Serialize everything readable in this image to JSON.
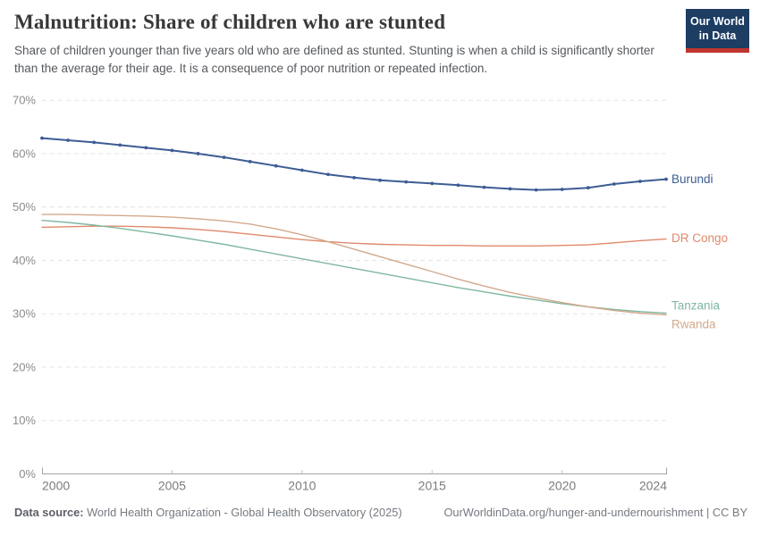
{
  "header": {
    "title": "Malnutrition: Share of children who are stunted",
    "subtitle": "Share of children younger than five years old who are defined as stunted. Stunting is when a child is significantly shorter than the average for their age. It is a consequence of poor nutrition or repeated infection."
  },
  "logo": {
    "line1": "Our World",
    "line2": "in Data",
    "bg_color": "#1d3d63",
    "bar_color": "#bf352e"
  },
  "chart_data": {
    "type": "line",
    "title": "Malnutrition: Share of children who are stunted",
    "xlabel": "",
    "ylabel": "",
    "ylim": [
      0,
      70
    ],
    "yticks": [
      0,
      10,
      20,
      30,
      40,
      50,
      60,
      70
    ],
    "ytick_suffix": "%",
    "xticks": [
      2000,
      2005,
      2010,
      2015,
      2020,
      2024
    ],
    "grid": "dashed-horizontal",
    "legend_position": "right-of-line-end",
    "x": [
      2000,
      2001,
      2002,
      2003,
      2004,
      2005,
      2006,
      2007,
      2008,
      2009,
      2010,
      2011,
      2012,
      2013,
      2014,
      2015,
      2016,
      2017,
      2018,
      2019,
      2020,
      2021,
      2022,
      2023,
      2024
    ],
    "series": [
      {
        "name": "Burundi",
        "color": "#3d5c94",
        "markers": true,
        "values": [
          62.9,
          62.5,
          62.1,
          61.6,
          61.1,
          60.6,
          60.0,
          59.3,
          58.5,
          57.7,
          56.9,
          56.1,
          55.5,
          55.0,
          54.7,
          54.4,
          54.1,
          53.7,
          53.4,
          53.2,
          53.3,
          53.6,
          54.3,
          54.8,
          55.2
        ]
      },
      {
        "name": "DR Congo",
        "color": "#e0896c",
        "markers": false,
        "values": [
          46.2,
          46.3,
          46.4,
          46.4,
          46.3,
          46.1,
          45.8,
          45.4,
          44.9,
          44.4,
          43.9,
          43.5,
          43.2,
          43.0,
          42.9,
          42.8,
          42.8,
          42.7,
          42.7,
          42.7,
          42.8,
          42.9,
          43.3,
          43.7,
          44.0
        ]
      },
      {
        "name": "Tanzania",
        "color": "#7fb7a0",
        "markers": false,
        "values": [
          47.5,
          47.1,
          46.6,
          46.0,
          45.3,
          44.6,
          43.8,
          43.0,
          42.1,
          41.2,
          40.3,
          39.4,
          38.5,
          37.6,
          36.7,
          35.8,
          34.9,
          34.1,
          33.3,
          32.6,
          31.9,
          31.3,
          30.8,
          30.4,
          30.1
        ]
      },
      {
        "name": "Rwanda",
        "color": "#d3a98c",
        "markers": false,
        "values": [
          48.6,
          48.6,
          48.5,
          48.4,
          48.3,
          48.1,
          47.8,
          47.4,
          46.8,
          45.9,
          44.8,
          43.5,
          42.1,
          40.7,
          39.3,
          37.9,
          36.5,
          35.2,
          34.0,
          33.0,
          32.1,
          31.3,
          30.6,
          30.1,
          29.8
        ]
      }
    ]
  },
  "footer": {
    "source_label": "Data source:",
    "source_text": " World Health Organization - Global Health Observatory (2025)",
    "link_text": "OurWorldinData.org/hunger-and-undernourishment | CC BY"
  }
}
